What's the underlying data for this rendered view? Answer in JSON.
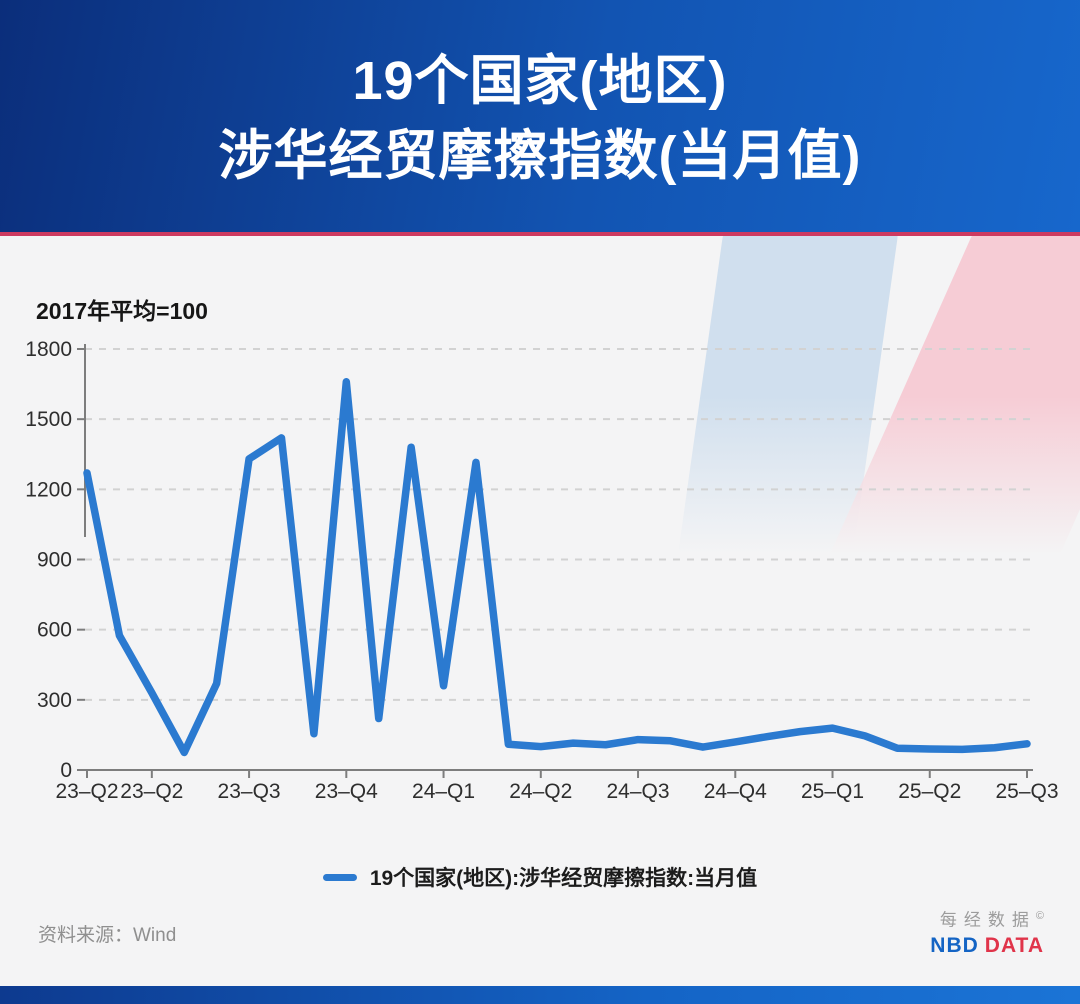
{
  "header": {
    "title_line1": "19个国家(地区)",
    "title_line2": "涉华经贸摩擦指数(当月值)"
  },
  "chart_data": {
    "type": "line",
    "note": "2017年平均=100",
    "frequency": "monthly",
    "start_month": "2023-04",
    "end_month": "2025-09",
    "values": [
      1270,
      575,
      330,
      75,
      370,
      1330,
      1420,
      155,
      1660,
      220,
      1380,
      360,
      1315,
      110,
      100,
      115,
      108,
      130,
      125,
      98,
      120,
      143,
      164,
      179,
      146,
      93,
      90,
      88,
      95,
      112
    ],
    "x_labels": [
      "23–Q2",
      "23–Q2",
      "23–Q3",
      "23–Q4",
      "24–Q1",
      "24–Q2",
      "24–Q3",
      "24–Q4",
      "25–Q1",
      "25–Q2",
      "25–Q3"
    ],
    "x_label_month_index": [
      0,
      2,
      5,
      8,
      11,
      14,
      17,
      20,
      23,
      26,
      29
    ],
    "yticks": [
      0,
      300,
      600,
      900,
      1200,
      1500,
      1800
    ],
    "ylim": [
      0,
      1800
    ],
    "grid": "dashed-horizontal",
    "line_color": "#2b7ad0",
    "legend": {
      "label": "19个国家(地区):涉华经贸摩擦指数:当月值",
      "position": "bottom-center"
    }
  },
  "footer": {
    "source": "资料来源：Wind",
    "brand_cn": "每经数据",
    "brand_mark": "©",
    "brand_en_blue": "NBD",
    "brand_en_red": "DATA"
  },
  "colors": {
    "header_gradient_start": "#0b2e7b",
    "header_gradient_end": "#1767cc",
    "divider_red": "#cd3a60",
    "background": "#f4f4f5",
    "line_blue": "#2b7ad0",
    "brand_blue": "#1464c4",
    "brand_red": "#e0344a"
  }
}
